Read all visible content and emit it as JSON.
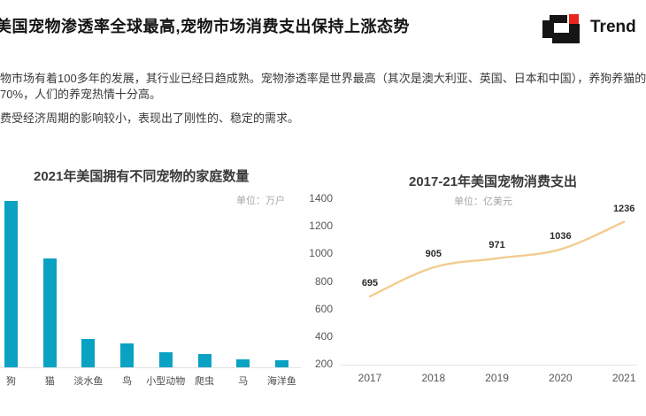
{
  "page": {
    "title": "美国宠物渗透率全球最高,宠物市场消费支出保持上涨态势",
    "logo_text": "Trend",
    "logo_black": "#151515",
    "logo_red": "#e8251f"
  },
  "body": {
    "paragraph1_line1": "物市场有着100多年的发展，其行业已经日趋成熟。宠物渗透率是世界最高（其次是澳大利亚、英国、日本和中国），养狗养猫的",
    "paragraph1_line2": "70%，人们的养宠热情十分高。",
    "paragraph2": "费受经济周期的影响较小，表现出了刚性的、稳定的需求。"
  },
  "chart_data": [
    {
      "type": "bar",
      "title": "2021年美国拥有不同宠物的家庭数量",
      "unit": "单位：万户",
      "categories": [
        "狗",
        "猫",
        "淡水鱼",
        "鸟",
        "小型动物",
        "爬虫",
        "马",
        "海洋鱼"
      ],
      "values": [
        6900,
        4530,
        1180,
        990,
        620,
        570,
        350,
        290
      ],
      "bar_color": "#0aa2c2",
      "ylabel": "万户",
      "grid": false,
      "value_labels_shown": false
    },
    {
      "type": "line",
      "title": "2017-21年美国宠物消费支出",
      "unit": "单位：亿美元",
      "x": [
        "2017",
        "2018",
        "2019",
        "2020",
        "2021"
      ],
      "values": [
        695,
        905,
        971,
        1036,
        1236
      ],
      "point_labels": [
        "695",
        "905",
        "971",
        "1036",
        "1236"
      ],
      "y_ticks": [
        1400,
        1200,
        1000,
        800,
        600,
        400,
        200
      ],
      "ylim": [
        200,
        1400
      ],
      "line_color": "#f2cc8f",
      "ylabel": "亿美元",
      "grid": false
    }
  ]
}
